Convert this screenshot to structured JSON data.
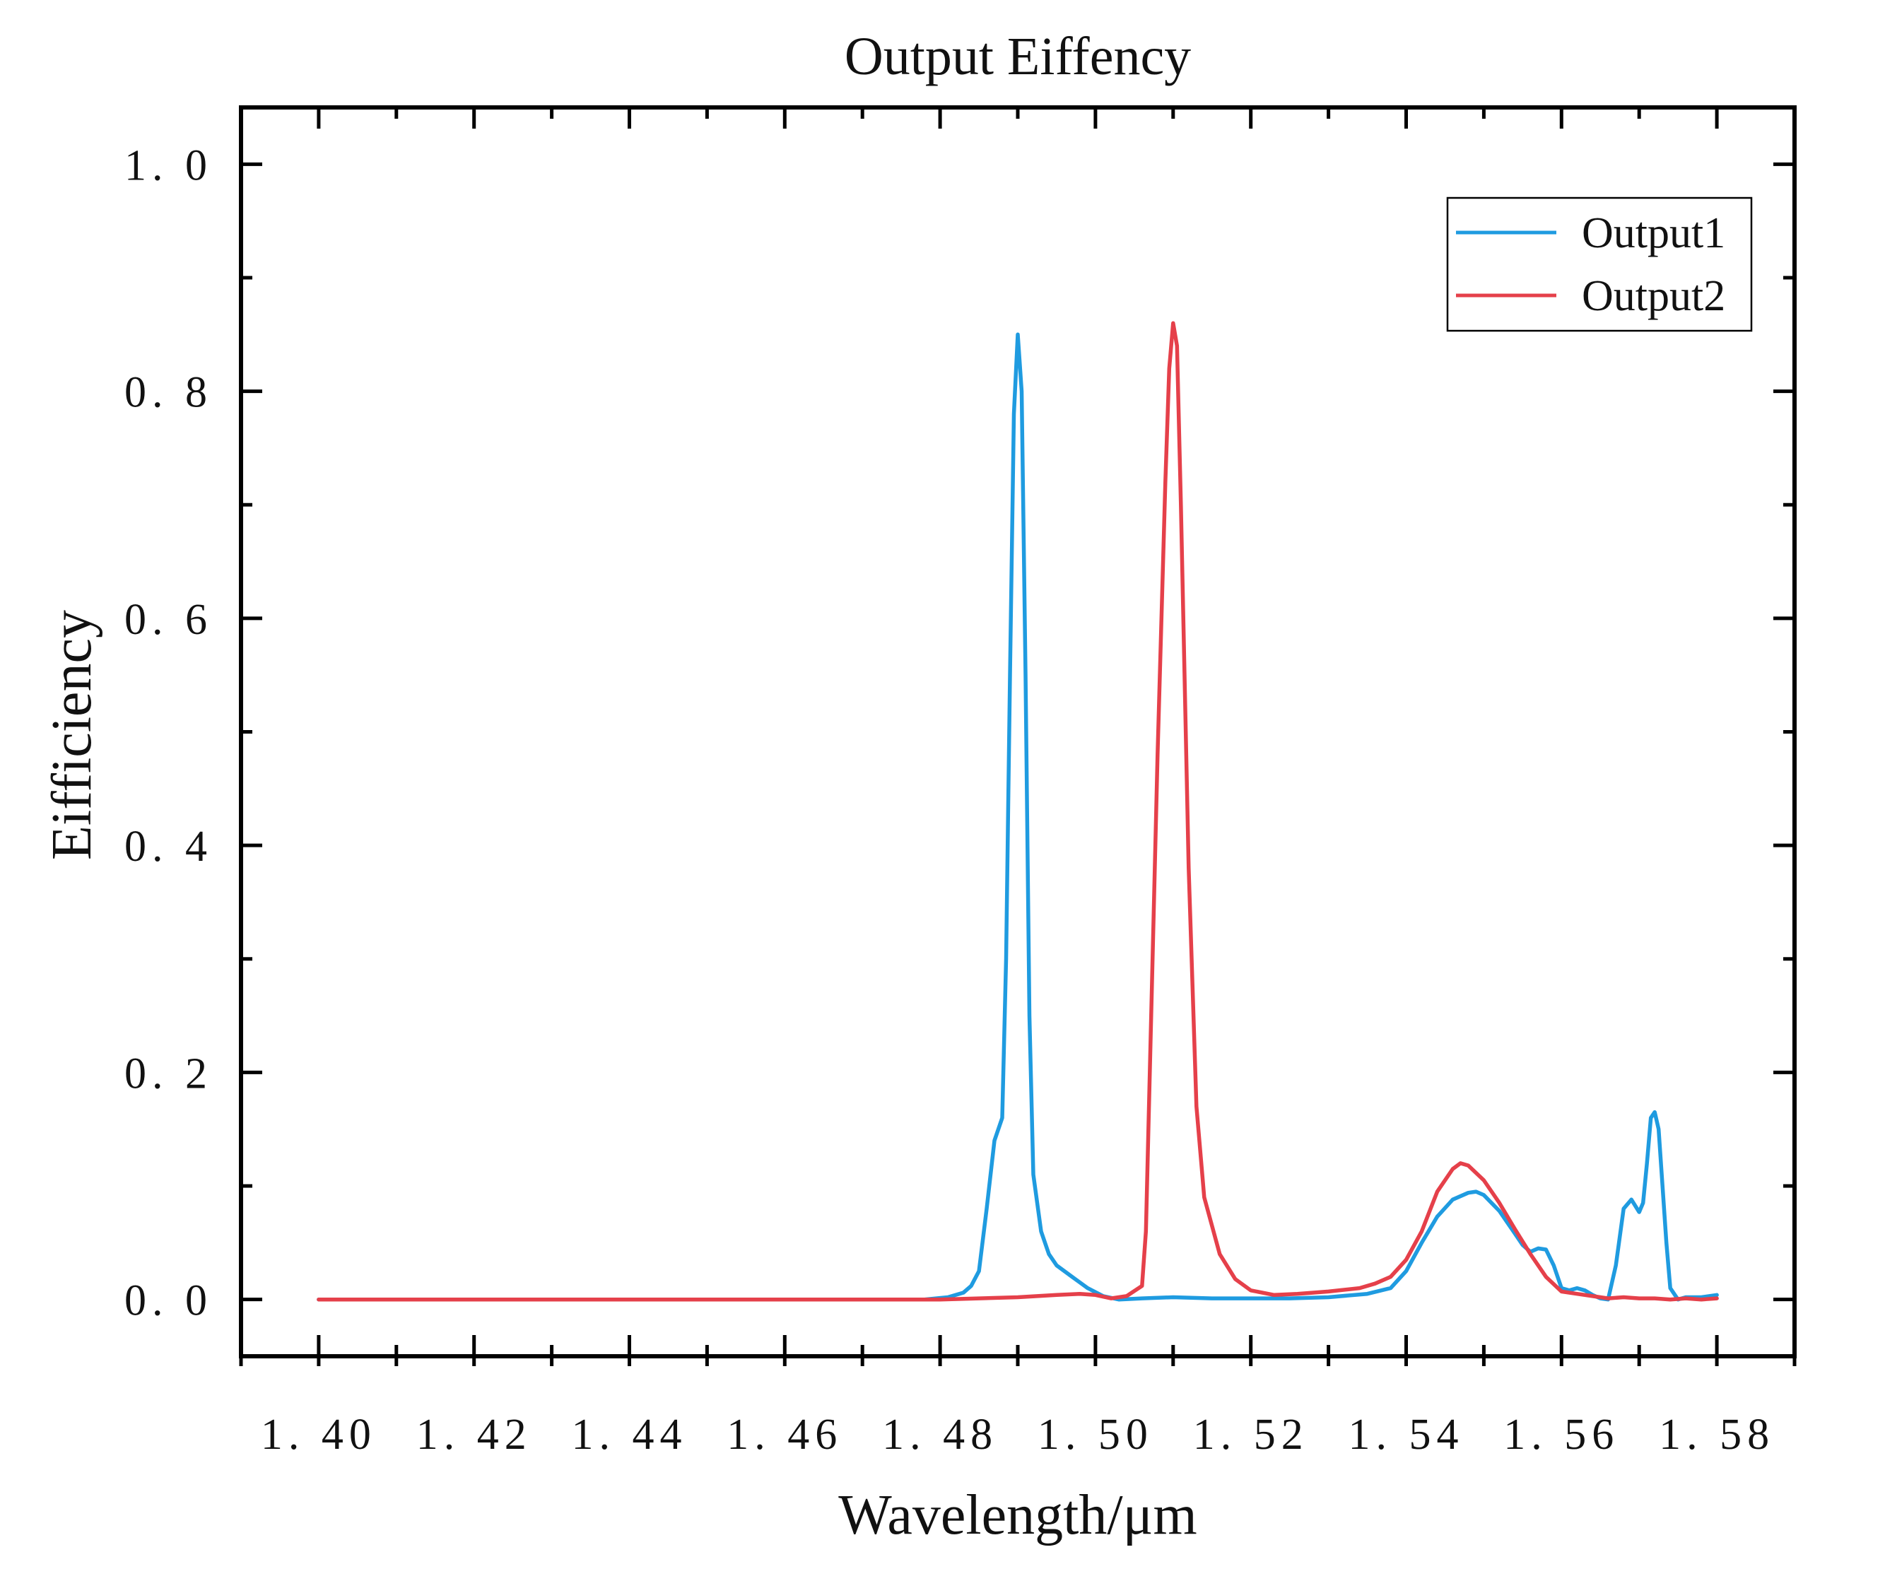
{
  "chart_data": {
    "type": "line",
    "title": "Output Eiffency",
    "xlabel": "Wavelength/μm",
    "ylabel": "Eifficiency",
    "xlim": [
      1.39,
      1.59
    ],
    "ylim": [
      -0.05,
      1.05
    ],
    "x_ticks": [
      "1. 40",
      "1. 42",
      "1. 44",
      "1. 46",
      "1. 48",
      "1. 50",
      "1. 52",
      "1. 54",
      "1. 56",
      "1. 58"
    ],
    "y_ticks": [
      "0. 0",
      "0. 2",
      "0. 4",
      "0. 6",
      "0. 8",
      "1. 0"
    ],
    "legend_position": "top-right",
    "grid": false,
    "series": [
      {
        "name": "Output1",
        "color": "#1f9be0",
        "x": [
          1.4,
          1.42,
          1.44,
          1.46,
          1.47,
          1.478,
          1.481,
          1.483,
          1.484,
          1.485,
          1.486,
          1.487,
          1.488,
          1.4885,
          1.489,
          1.4895,
          1.49,
          1.4905,
          1.491,
          1.4915,
          1.492,
          1.493,
          1.494,
          1.495,
          1.497,
          1.499,
          1.501,
          1.503,
          1.506,
          1.51,
          1.515,
          1.52,
          1.525,
          1.53,
          1.535,
          1.538,
          1.54,
          1.542,
          1.544,
          1.546,
          1.548,
          1.549,
          1.55,
          1.552,
          1.554,
          1.555,
          1.556,
          1.557,
          1.558,
          1.559,
          1.56,
          1.561,
          1.562,
          1.563,
          1.564,
          1.565,
          1.566,
          1.567,
          1.568,
          1.569,
          1.57,
          1.5705,
          1.571,
          1.5715,
          1.572,
          1.5725,
          1.573,
          1.5735,
          1.574,
          1.575,
          1.576,
          1.578,
          1.58
        ],
        "y": [
          0.0,
          0.0,
          0.0,
          0.0,
          0.0,
          0.0,
          0.002,
          0.006,
          0.012,
          0.025,
          0.08,
          0.14,
          0.16,
          0.3,
          0.55,
          0.78,
          0.85,
          0.8,
          0.55,
          0.25,
          0.11,
          0.06,
          0.04,
          0.03,
          0.02,
          0.01,
          0.003,
          0.0,
          0.001,
          0.002,
          0.001,
          0.001,
          0.001,
          0.002,
          0.005,
          0.01,
          0.025,
          0.05,
          0.073,
          0.088,
          0.094,
          0.095,
          0.092,
          0.078,
          0.058,
          0.048,
          0.042,
          0.045,
          0.044,
          0.03,
          0.01,
          0.008,
          0.01,
          0.008,
          0.004,
          0.001,
          0.0,
          0.03,
          0.08,
          0.088,
          0.077,
          0.085,
          0.12,
          0.16,
          0.165,
          0.15,
          0.1,
          0.05,
          0.01,
          0.0,
          0.002,
          0.002,
          0.004
        ]
      },
      {
        "name": "Output2",
        "color": "#e5404a",
        "x": [
          1.4,
          1.42,
          1.44,
          1.46,
          1.48,
          1.485,
          1.49,
          1.495,
          1.498,
          1.5,
          1.502,
          1.504,
          1.506,
          1.5065,
          1.507,
          1.508,
          1.509,
          1.5095,
          1.51,
          1.5105,
          1.511,
          1.512,
          1.513,
          1.514,
          1.516,
          1.518,
          1.52,
          1.523,
          1.526,
          1.53,
          1.534,
          1.536,
          1.538,
          1.54,
          1.542,
          1.544,
          1.546,
          1.547,
          1.548,
          1.55,
          1.552,
          1.554,
          1.556,
          1.558,
          1.56,
          1.562,
          1.564,
          1.566,
          1.568,
          1.57,
          1.572,
          1.574,
          1.576,
          1.578,
          1.58
        ],
        "y": [
          0.0,
          0.0,
          0.0,
          0.0,
          0.0,
          0.001,
          0.002,
          0.004,
          0.005,
          0.004,
          0.001,
          0.003,
          0.012,
          0.06,
          0.2,
          0.48,
          0.72,
          0.82,
          0.86,
          0.84,
          0.7,
          0.38,
          0.17,
          0.09,
          0.04,
          0.018,
          0.008,
          0.004,
          0.005,
          0.007,
          0.01,
          0.014,
          0.02,
          0.035,
          0.06,
          0.095,
          0.115,
          0.12,
          0.118,
          0.105,
          0.085,
          0.062,
          0.04,
          0.02,
          0.007,
          0.005,
          0.003,
          0.001,
          0.002,
          0.001,
          0.001,
          0.0,
          0.001,
          0.0,
          0.001
        ]
      }
    ]
  }
}
